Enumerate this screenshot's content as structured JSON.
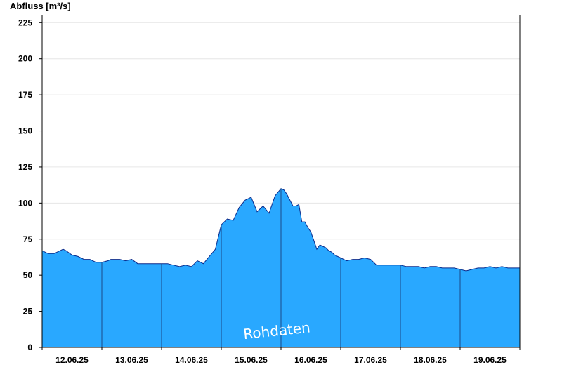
{
  "chart_data": {
    "type": "area",
    "ylabel": "Abfluss [m³/s]",
    "ylim": [
      0,
      230
    ],
    "yticks": [
      0,
      25,
      50,
      75,
      100,
      125,
      150,
      175,
      200,
      225
    ],
    "xlabel": "",
    "x_tick_labels": [
      "12.06.25",
      "13.06.25",
      "14.06.25",
      "15.06.25",
      "16.06.25",
      "17.06.25",
      "18.06.25",
      "19.06.25"
    ],
    "grid": "horizontal",
    "colors": {
      "fill": "#29a8ff",
      "line": "#0a2a8a",
      "grid": "#e6e6e6"
    },
    "watermark": "Rohdaten",
    "series": [
      {
        "x_days": [
          0.0,
          0.05,
          0.1,
          0.2,
          0.3,
          0.35,
          0.4,
          0.5,
          0.6,
          0.7,
          0.8,
          0.9,
          1.0,
          1.1,
          1.15,
          1.2,
          1.3,
          1.4,
          1.5,
          1.6,
          1.7,
          1.8,
          1.9,
          2.0,
          2.1,
          2.2,
          2.3,
          2.4,
          2.5,
          2.6,
          2.7,
          2.8,
          2.9,
          3.0,
          3.1,
          3.2,
          3.3,
          3.4,
          3.5,
          3.6,
          3.7,
          3.8,
          3.9,
          4.0,
          4.05,
          4.1,
          4.2,
          4.25,
          4.3,
          4.35,
          4.4,
          4.45,
          4.5,
          4.55,
          4.6,
          4.65,
          4.7,
          4.75,
          4.8,
          4.85,
          4.9,
          4.95,
          5.0,
          5.05,
          5.1,
          5.2,
          5.3,
          5.4,
          5.5,
          5.6,
          5.7,
          5.8,
          5.9,
          6.0,
          6.1,
          6.2,
          6.3,
          6.4,
          6.5,
          6.6,
          6.7,
          6.8,
          6.9,
          7.0,
          7.1,
          7.2,
          7.3,
          7.4,
          7.5,
          7.6,
          7.7,
          7.8,
          8.0
        ],
        "values": [
          67,
          66,
          65,
          65,
          67,
          68,
          67,
          64,
          63,
          61,
          61,
          59,
          59,
          60,
          61,
          61,
          61,
          60,
          61,
          58,
          58,
          58,
          58,
          58,
          58,
          57,
          56,
          57,
          56,
          60,
          58,
          63,
          68,
          85,
          89,
          88,
          97,
          102,
          104,
          94,
          98,
          93,
          105,
          110,
          109,
          106,
          98,
          98,
          99,
          87,
          87,
          83,
          80,
          74,
          68,
          71,
          70,
          69,
          67,
          66,
          64,
          63,
          62,
          61,
          60,
          61,
          61,
          62,
          61,
          57,
          57,
          57,
          57,
          57,
          56,
          56,
          56,
          55,
          56,
          56,
          55,
          55,
          55,
          54,
          53,
          54,
          55,
          55,
          56,
          55,
          56,
          55,
          55
        ]
      }
    ]
  }
}
